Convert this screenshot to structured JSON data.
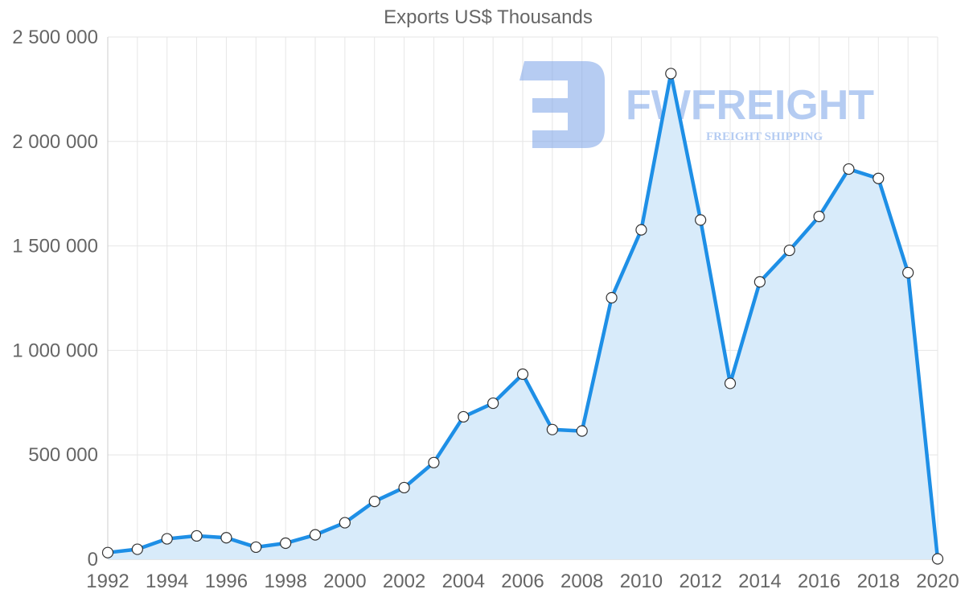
{
  "chart_data": {
    "type": "area",
    "title": "Exports US$ Thousands",
    "xlabel": "",
    "ylabel": "",
    "x": [
      1992,
      1993,
      1994,
      1995,
      1996,
      1997,
      1998,
      1999,
      2000,
      2001,
      2002,
      2003,
      2004,
      2005,
      2006,
      2007,
      2008,
      2009,
      2010,
      2011,
      2012,
      2013,
      2014,
      2015,
      2016,
      2017,
      2018,
      2019,
      2020
    ],
    "series": [
      {
        "name": "Exports US$ Thousands",
        "values": [
          32000,
          48000,
          98000,
          112000,
          103000,
          58000,
          77000,
          117000,
          175000,
          277000,
          343000,
          463000,
          682000,
          747000,
          886000,
          621000,
          614000,
          1252000,
          1577000,
          2325000,
          1624000,
          842000,
          1328000,
          1479000,
          1641000,
          1868000,
          1823000,
          1372000,
          2000
        ]
      }
    ],
    "ylim": [
      0,
      2500000
    ],
    "yticks": [
      0,
      500000,
      1000000,
      1500000,
      2000000,
      2500000
    ],
    "ytick_labels": [
      "0",
      "500 000",
      "1 000 000",
      "1 500 000",
      "2 000 000",
      "2 500 000"
    ],
    "xtick_labels": [
      "1992",
      "1994",
      "1996",
      "1998",
      "2000",
      "2002",
      "2004",
      "2006",
      "2008",
      "2010",
      "2012",
      "2014",
      "2016",
      "2018",
      "2020"
    ],
    "grid": true,
    "legend": "none",
    "colors": {
      "line": "#1e8fe6",
      "fill": "#d8ebfa",
      "point_fill": "#ffffff",
      "point_stroke": "#333333",
      "grid": "#e6e6e6",
      "axis": "#cccccc"
    }
  },
  "watermark": {
    "brand": "FWFREIGHT",
    "tagline": "FREIGHT SHIPPING",
    "color": "#6d9ae6"
  }
}
